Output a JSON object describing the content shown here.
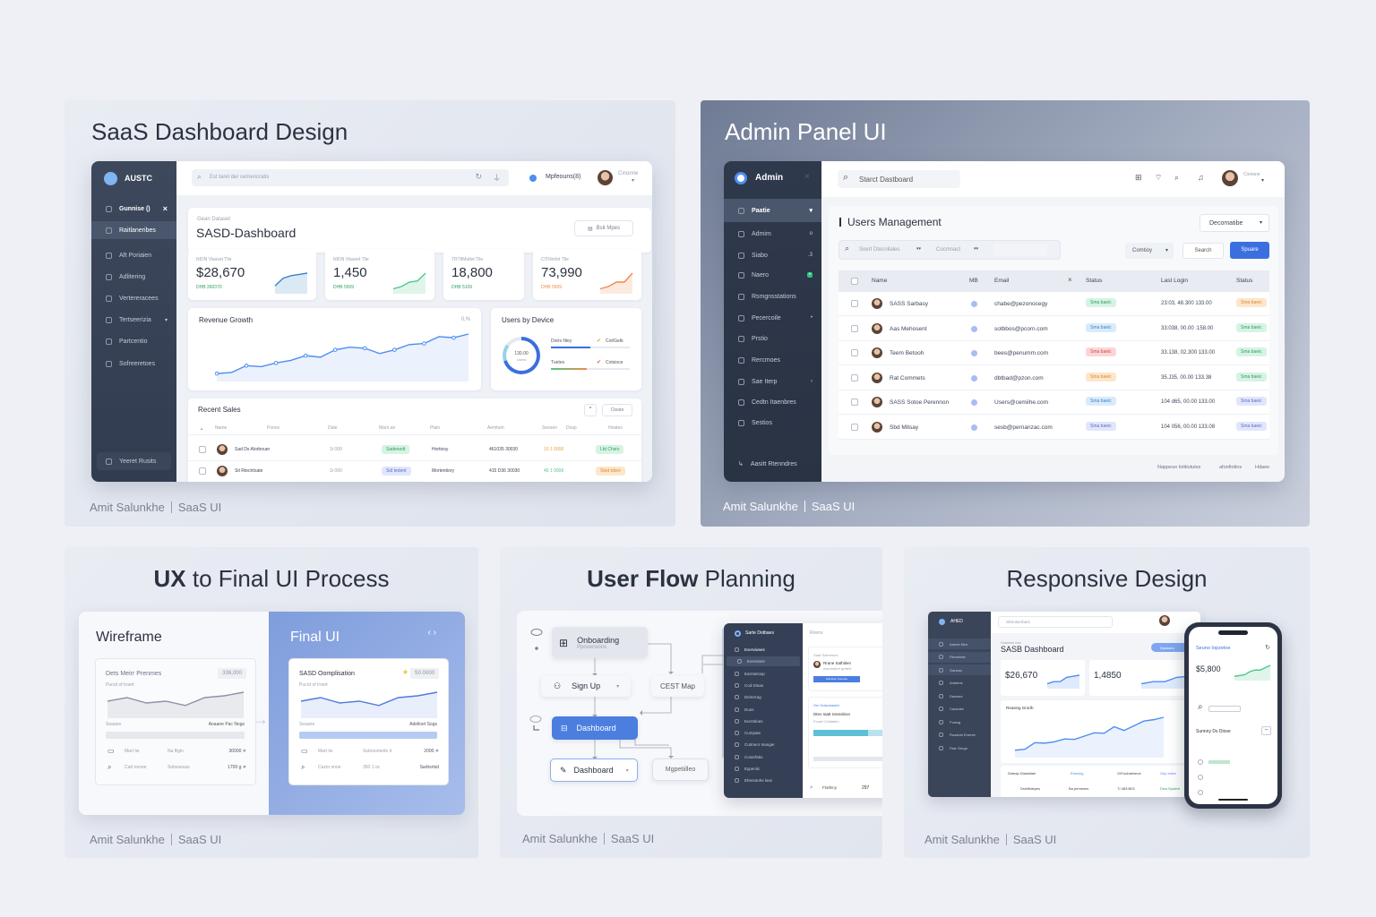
{
  "footer": {
    "author": "Amit Salunkhe",
    "tag": "SaaS UI"
  },
  "colors": {
    "accent": "#3b6fe0",
    "sidebar_dark": "#374256",
    "success": "#2f9e62",
    "danger": "#d24b4b",
    "warning": "#d98a2b"
  },
  "saas": {
    "title": "SaaS Dashboard Design",
    "brand": "AUSTC",
    "search_placeholder": "Est tarel der cemencratis",
    "profile_label": "Mpfeouns(8)",
    "user_name": "Cinonne",
    "sidebar": [
      {
        "label": "Gunnise ()",
        "icon": "grid-icon"
      },
      {
        "label": "Raitlaneribes",
        "icon": "home-icon"
      },
      {
        "label": "Aft Poriaien",
        "icon": "list-icon"
      },
      {
        "label": "Adlitering",
        "icon": "file-icon"
      },
      {
        "label": "Vertereracees",
        "icon": "tag-icon"
      },
      {
        "label": "Tertseerizia",
        "icon": "chart-icon"
      },
      {
        "label": "Partcentio",
        "icon": "box-icon"
      },
      {
        "label": "Sofreeretoes",
        "icon": "settings-icon"
      }
    ],
    "sidebar_bottom": "Yeeret Rusits",
    "breadcrumb": "Gean Dataset",
    "page_title": "SASD-Dashboard",
    "header_button": "Bsit Mpes",
    "stats": [
      {
        "label": "NIDN Vlasset Tlie",
        "value": "$28,670",
        "delta": "DHB 260370",
        "color": "#3a84c8",
        "spark": [
          2,
          5,
          6,
          6.5,
          7
        ]
      },
      {
        "label": "NIDN Vlaseet Tlie",
        "value": "1,450",
        "delta": "DHB 5509",
        "color": "#4cc98a",
        "spark": [
          1,
          2,
          4,
          4.5,
          8
        ]
      },
      {
        "label": "TRTIlMatlet Tlie",
        "value": "18,800",
        "delta": "DHB 5109",
        "color": "#3a84c8",
        "spark": []
      },
      {
        "label": "CITIlinrlet Tlie",
        "value": "73,990",
        "delta": "DHB 5509",
        "color": "#f08a4b",
        "spark": [
          1,
          2,
          4,
          4,
          8
        ]
      }
    ],
    "revenue": {
      "title": "Revenue Growth",
      "badge": "0,%",
      "values": [
        1,
        1.2,
        2.5,
        2.3,
        3,
        3.5,
        4.4,
        4.1,
        5.5,
        6,
        5.8,
        4.8,
        5.5,
        6.5,
        6.7,
        8,
        7.8,
        8.5
      ]
    },
    "devices": {
      "title": "Users by Device",
      "center": "130.00",
      "sub": "Users",
      "rows": [
        {
          "label": "Dotrs Nley",
          "status": "Cot/Getk",
          "fill": 0.5
        },
        {
          "label": "Tuetes",
          "status": "Cotsioce",
          "fill": 0.45
        }
      ]
    },
    "sales": {
      "title": "Recent Sales",
      "button": "Cteate",
      "columns": [
        "Name",
        "Ponce",
        "Date",
        "Marn.an",
        "Plain",
        "Aemtum",
        "Seesen",
        "Dosp",
        "Heates"
      ],
      "rows": [
        {
          "name": "Sad Ds Alorbouer",
          "date": "1t 000",
          "badge": "Sadenedt",
          "badge_tone": "g",
          "plain": "Hortiosy",
          "amount": "461035 30030",
          "seesen": "10 1 0006",
          "status": "Lbt Chsrs",
          "status_tone": "g"
        },
        {
          "name": "Sit Rtectrtsate",
          "date": "1t 000",
          "badge": "Sid tedent",
          "badge_tone": "v",
          "plain": "Mortentiory",
          "amount": "415 D36 30030",
          "seesen": "40 1 0006",
          "status": "Sted tdsre",
          "status_tone": "o"
        }
      ]
    }
  },
  "admin": {
    "title": "Admin Panel UI",
    "brand": "Admin",
    "search_placeholder": "Starct Dastboard",
    "user_name": "Coniane",
    "sidebar": [
      {
        "label": "Paatie",
        "badge": ""
      },
      {
        "label": "Admim",
        "badge": "o"
      },
      {
        "label": "Siabo",
        "badge": ".3"
      },
      {
        "label": "Naero",
        "badge": "•"
      },
      {
        "label": "Rsmgnsstations",
        "badge": ""
      },
      {
        "label": "Pecercoile",
        "badge": "•"
      },
      {
        "label": "Prstio",
        "badge": ""
      },
      {
        "label": "Rercmoes",
        "badge": ""
      },
      {
        "label": "Sae Iterp",
        "badge": "›"
      },
      {
        "label": "Cedtn Itaenbres",
        "badge": ""
      },
      {
        "label": "Sestios",
        "badge": ""
      }
    ],
    "sidebar_bottom": "Aasitt Rtenndres",
    "page_title": "Users Management",
    "sort_dropdown": "Decomatibe",
    "filter_placeholder": "Soert Dtecnilales",
    "filter_second": "Cocmnact",
    "country_select": "Comtioy",
    "search_button": "Search",
    "primary_button": "Spuare",
    "columns": [
      "Name",
      "MB",
      "Email",
      "Status",
      "Last Login",
      "Status"
    ],
    "rows": [
      {
        "name": "SASS Sarbasy",
        "email": "chabe@pezonocegy",
        "status": "Sma baeic",
        "status_tone": "g",
        "login": "23:03, 48.300 133.00",
        "status2": "Sma baeic",
        "status2_tone": "o"
      },
      {
        "name": "Aas Mehosent",
        "email": "sotbbos@pcorn.com",
        "status": "Sma baeic",
        "status_tone": "b",
        "login": "33:038, 00.00 :158.00",
        "status2": "Sma baeic",
        "status2_tone": "g"
      },
      {
        "name": "Teem Betooh",
        "email": "bees@penumm.com",
        "status": "Sma baeic",
        "status_tone": "r",
        "login": "33.138, 02.300 133.00",
        "status2": "Sma baeic",
        "status2_tone": "g"
      },
      {
        "name": "Rat Commets",
        "email": "dbtbad@pzon.com",
        "status": "Sma baeic",
        "status_tone": "o",
        "login": "35.J35, 00.00 133.38",
        "status2": "Sma baeic",
        "status2_tone": "g"
      },
      {
        "name": "SASS Sotoe Perennon",
        "email": "Users@cemiihe.com",
        "status": "Sma baeic",
        "status_tone": "b",
        "login": "104 d65, 00.00 133.00",
        "status2": "Sma baeic",
        "status2_tone": "v"
      },
      {
        "name": "Sbd Mitsay",
        "email": "sesb@pernanzac.com",
        "status": "Sma baeic",
        "status_tone": "v",
        "login": "104 056, 00.00 133.08",
        "status2": "Sma baeic",
        "status2_tone": "v"
      }
    ],
    "footer_links": [
      "Nappeso Iotitiutules",
      "afonfiotins",
      "Hdaee"
    ]
  },
  "ux": {
    "title_bold": "UX",
    "title_rest": "to Final UI Process",
    "wireframe": {
      "label": "Wireframe",
      "card_title": "Dets Meirr Prenmes",
      "badge": "336,000",
      "sub": "Pucrd of Iroert",
      "row_left": "Seaane",
      "row_right": "Aoaane Pac Nogs",
      "list": [
        {
          "a": "Mart Iw",
          "b": "Na Bgin",
          "c": "30000 ✕"
        },
        {
          "a": "Cad nenoe",
          "b": "Sobsseuas",
          "c": "1700 g ✕"
        }
      ]
    },
    "final": {
      "label": "Final UI",
      "card_title": "SASD Oomplisation",
      "badge": "S0.0000",
      "sub": "Pucrd of Iroert",
      "row_left": "Seaane",
      "row_right": "Adelloet Sogs",
      "list": [
        {
          "a": "Mart Iw",
          "b": "Sobrsomeds Ir",
          "c": "2000 ✕"
        },
        {
          "a": "Cazm nnoe",
          "b": "350 1 oc",
          "c": "Sarbsrtsd"
        }
      ]
    }
  },
  "flow": {
    "title_bold": "User Flow",
    "title_rest": "Planning",
    "nodes": {
      "onboarding": "Onboarding",
      "onboarding_sub": "Ppoversions",
      "signup": "Sign Up",
      "cest": "CEST Map",
      "dashboard": "Dashboard",
      "dashboard2": "Dashboard",
      "mapetiileo": "Mgpetiilleo"
    },
    "app": {
      "brand": "Sarte Dotbaes",
      "header": "Rirens",
      "menu": [
        "Everviwses",
        "Everstves",
        "Earntetsiop",
        "Cod Dinas",
        "Delrerrag",
        "Dues",
        "Eurntdoes",
        "Cumpaie",
        "Cutmeor Inanger",
        "Coserfatio",
        "Eypenitc",
        "Ehenntohe lass"
      ],
      "card1_title": "Daat Sstrsmurs",
      "card1_name": "Rrane Sathitien",
      "card1_sub": "eisrorsbert quttert",
      "card1_btn": "Scletsion Sumane",
      "card2_title": "Om Sotsohastet",
      "card2_head": "Dteo Iaatt Iotvssbion",
      "card2_sub": "Fouef Cntdaiteri",
      "search": "Ftathiny",
      "page": "297"
    }
  },
  "responsive": {
    "title": "Responsive Design",
    "desktop": {
      "brand": "AHED",
      "search": "Shtrotserbars",
      "breadcrumb": "Doatesrt nes",
      "page_title": "SASB Dashboard",
      "button": "Dpasseo",
      "stat1": "$26,670",
      "stat2": "1,4850",
      "chart_title": "Reasing Grorth",
      "bottom": [
        "Dsteap Dlasbilate",
        "Ebesing",
        "G/Eoobaimeoe",
        "Ghp eoba"
      ],
      "row": [
        "Dsrbiltabyes",
        "Ba pemeses",
        "T/ 483:B03",
        "Dsrs Epaiett"
      ],
      "menu": [
        "Aaerie Mne",
        "Flenehtae",
        "Gancac",
        "Anbtens",
        "Dactses",
        "Caosdes",
        "Fvarsg",
        "Ruastob Eneree",
        "Flae Gnrge"
      ],
      "revenue": [
        1,
        1.2,
        2.6,
        2.5,
        2.8,
        3.4,
        3.3,
        4,
        4.7,
        4.6,
        6,
        5.2,
        6.2,
        7.2,
        7.5,
        8
      ]
    },
    "phone": {
      "title": "Seuno Iopzetoe",
      "stat": "$5,800",
      "section": "Sunnny Ds Diose",
      "spark": [
        1,
        1.5,
        2,
        4,
        5,
        5,
        6.5,
        8
      ]
    }
  }
}
